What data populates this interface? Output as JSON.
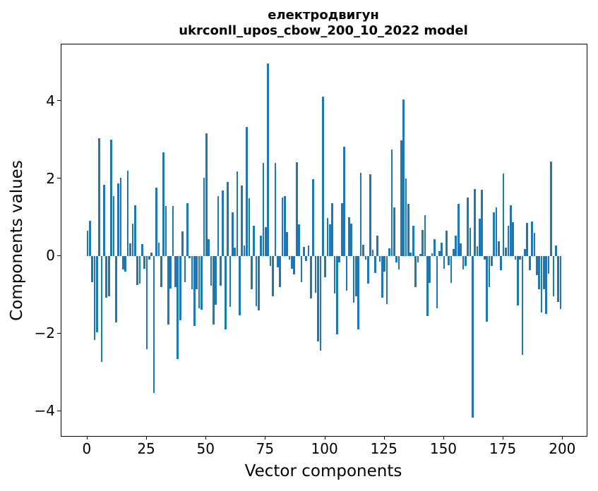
{
  "figure": {
    "title_line1": "електродвигун",
    "title_line2": "ukrconll_upos_cbow_200_10_2022 model"
  },
  "chart_data": {
    "type": "bar",
    "title": "електродвигун\nukrconll_upos_cbow_200_10_2022 model",
    "xlabel": "Vector components",
    "ylabel": "Components values",
    "legend": null,
    "grid": false,
    "bar_color": "#1f77b4",
    "bar_width": 0.8,
    "x_start": 0,
    "xlim": [
      -10.95,
      210.0
    ],
    "ylim": [
      -4.644,
      5.463
    ],
    "xticks": [
      0,
      25,
      50,
      75,
      100,
      125,
      150,
      175,
      200
    ],
    "yticks": [
      -4,
      -2,
      0,
      2,
      4
    ],
    "values": [
      0.65,
      0.91,
      -0.67,
      -2.16,
      -1.96,
      3.04,
      -2.74,
      1.84,
      -1.07,
      -1.04,
      3.01,
      1.55,
      -1.71,
      1.88,
      2.02,
      -0.35,
      -0.41,
      2.2,
      0.33,
      0.84,
      1.31,
      -0.74,
      -0.71,
      0.31,
      -0.32,
      -2.41,
      -0.1,
      0.1,
      -3.53,
      1.76,
      0.35,
      -0.8,
      2.68,
      1.29,
      -1.77,
      -0.83,
      1.29,
      -0.8,
      -2.65,
      -1.65,
      0.63,
      -0.68,
      1.36,
      -0.05,
      -0.86,
      -1.8,
      -0.86,
      -1.35,
      -1.38,
      2.02,
      3.16,
      0.43,
      -0.77,
      -1.76,
      -1.26,
      1.55,
      -0.77,
      1.7,
      -1.89,
      1.91,
      -1.32,
      1.12,
      0.21,
      2.19,
      -1.53,
      1.82,
      0.27,
      3.33,
      1.49,
      -0.86,
      0.79,
      -1.29,
      -1.41,
      0.53,
      2.4,
      0.74,
      4.97,
      -0.25,
      -1.04,
      2.41,
      -0.29,
      -0.8,
      1.51,
      1.55,
      0.61,
      -0.1,
      -0.32,
      -0.47,
      2.43,
      0.82,
      -0.68,
      0.24,
      -0.13,
      0.27,
      -1.1,
      1.99,
      -0.95,
      -2.2,
      -2.44,
      4.12,
      -0.55,
      0.99,
      0.82,
      1.37,
      -0.97,
      -2.02,
      -0.16,
      1.36,
      2.82,
      -0.89,
      1.0,
      0.84,
      -1.2,
      -1.04,
      -1.89,
      2.15,
      0.3,
      -0.1,
      -0.71,
      2.12,
      0.16,
      -0.44,
      0.53,
      -0.15,
      -1.07,
      -0.41,
      -1.23,
      0.2,
      2.75,
      1.25,
      -0.16,
      -0.35,
      2.99,
      4.05,
      2.0,
      1.35,
      0.1,
      0.79,
      -0.8,
      -0.16,
      0.05,
      0.67,
      1.06,
      -1.55,
      -0.69,
      0.08,
      0.43,
      -1.35,
      0.13,
      0.34,
      -0.33,
      0.65,
      -0.24,
      -0.69,
      0.19,
      0.53,
      1.35,
      0.33,
      -0.35,
      -0.25,
      1.51,
      0.72,
      -4.17,
      1.73,
      0.25,
      0.96,
      1.72,
      -0.1,
      -1.7,
      -0.8,
      -0.25,
      1.12,
      1.26,
      0.39,
      -0.36,
      2.13,
      0.21,
      0.79,
      1.31,
      0.88,
      -0.1,
      -1.27,
      -0.1,
      -2.55,
      0.18,
      0.86,
      -0.36,
      0.9,
      0.6,
      -0.5,
      -0.85,
      -1.45,
      -0.85,
      -1.5,
      -0.45,
      2.44,
      -1.03,
      0.28,
      -1.18,
      -1.36
    ]
  }
}
